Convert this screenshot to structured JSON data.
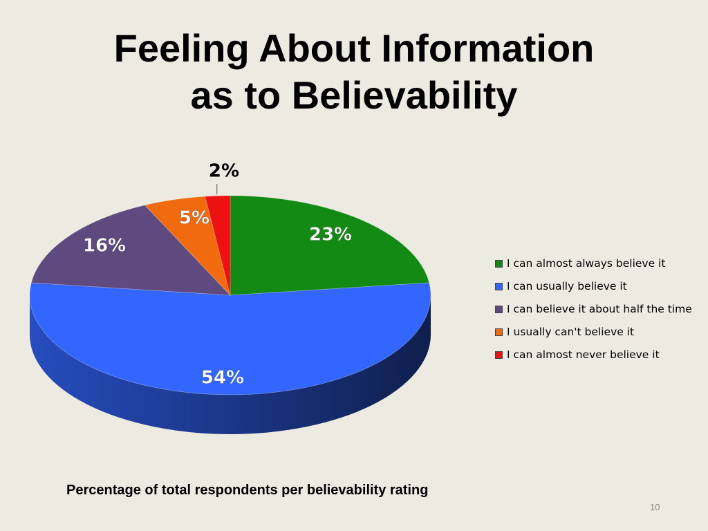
{
  "slide": {
    "title_line1": "Feeling About Information",
    "title_line2": "as to Believability",
    "subtitle": "Percentage of total respondents per believability rating",
    "page_number": "10"
  },
  "chart_data": {
    "type": "pie",
    "title": "Feeling About Information as to Believability",
    "three_d": true,
    "legend_position": "right",
    "slices": [
      {
        "name": "I can almost always believe it",
        "value": 23,
        "label": "23%",
        "color": "#138A13"
      },
      {
        "name": "I can usually believe it",
        "value": 54,
        "label": "54%",
        "color": "#3366FF"
      },
      {
        "name": "I can believe it about half the time",
        "value": 16,
        "label": "16%",
        "color": "#5E4A7E"
      },
      {
        "name": "I usually can't believe it",
        "value": 5,
        "label": "5%",
        "color": "#F26A0E"
      },
      {
        "name": "I can almost never believe it",
        "value": 2,
        "label": "2%",
        "color": "#EE1111"
      }
    ]
  }
}
